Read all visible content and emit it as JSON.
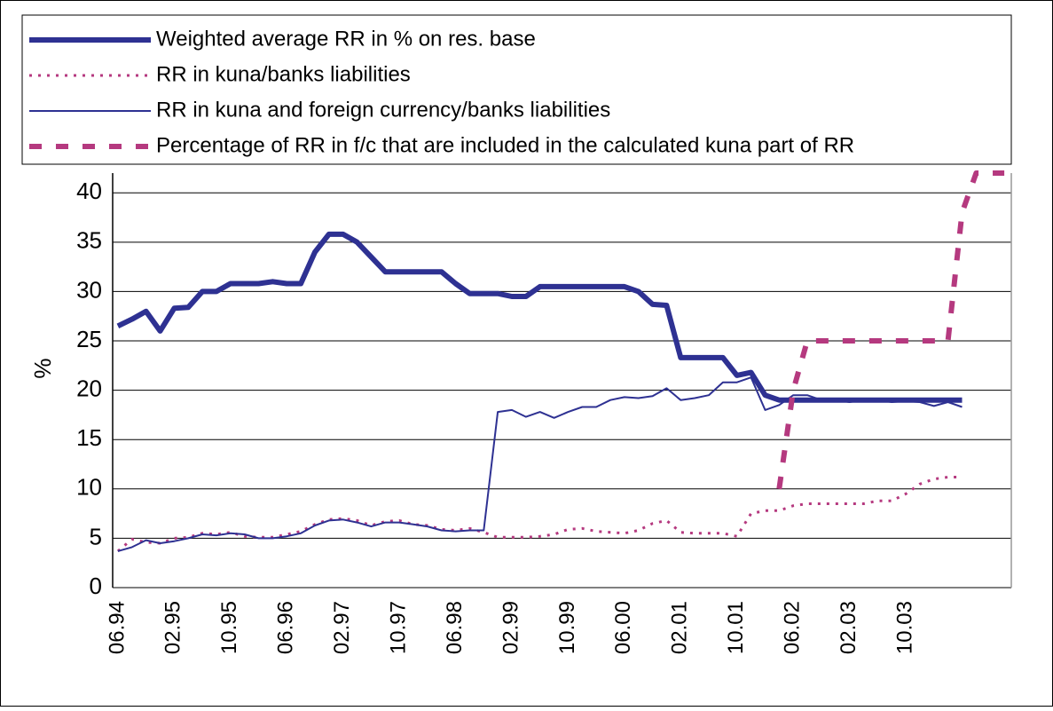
{
  "chart_data": {
    "type": "line",
    "y_label": "%",
    "categories": [
      "06.94",
      null,
      null,
      null,
      "02.95",
      null,
      null,
      null,
      "10.95",
      null,
      null,
      null,
      "06.96",
      null,
      null,
      null,
      "02.97",
      null,
      null,
      null,
      "10.97",
      null,
      null,
      null,
      "06.98",
      null,
      null,
      null,
      "02.99",
      null,
      null,
      null,
      "10.99",
      null,
      null,
      null,
      "06.00",
      null,
      null,
      null,
      "02.01",
      null,
      null,
      null,
      "10.01",
      null,
      null,
      null,
      "06.02",
      null,
      null,
      null,
      "02.03",
      null,
      null,
      null,
      "10.03",
      null,
      null,
      null,
      null,
      null,
      null,
      null
    ],
    "series": [
      {
        "name": "Weighted average RR in % on res. base",
        "color": "#2e3192",
        "style": "thick",
        "values": [
          26.5,
          27.2,
          28,
          26,
          28.3,
          28.4,
          30,
          30,
          30.8,
          30.8,
          30.8,
          31,
          30.8,
          30.8,
          34,
          35.8,
          35.8,
          35,
          33.5,
          32,
          32,
          32,
          32,
          32,
          30.8,
          29.8,
          29.8,
          29.8,
          29.5,
          29.5,
          30.5,
          30.5,
          30.5,
          30.5,
          30.5,
          30.5,
          30.5,
          30,
          28.7,
          28.6,
          23.3,
          23.3,
          23.3,
          23.3,
          21.5,
          21.8,
          19.5,
          19,
          19,
          19,
          19,
          19,
          19,
          19,
          19,
          19,
          19,
          19,
          19,
          19,
          19,
          null,
          null,
          null
        ]
      },
      {
        "name": "RR in kuna/banks liabilities",
        "color": "#b5397f",
        "style": "dotted",
        "values": [
          3.7,
          4.9,
          4.6,
          4.5,
          5.0,
          5.1,
          5.5,
          5.4,
          5.6,
          5.2,
          5.1,
          5.1,
          5.4,
          5.7,
          6.4,
          6.9,
          7.0,
          6.8,
          6.3,
          6.7,
          6.8,
          6.4,
          6.3,
          5.9,
          5.8,
          6.0,
          5.6,
          5.1,
          5.1,
          5.1,
          5.2,
          5.4,
          5.9,
          6.0,
          5.7,
          5.6,
          5.5,
          5.8,
          6.5,
          6.8,
          5.6,
          5.5,
          5.5,
          5.5,
          5.2,
          7.5,
          7.8,
          7.8,
          8.3,
          8.5,
          8.5,
          8.5,
          8.5,
          8.5,
          8.8,
          8.8,
          9.5,
          10.5,
          11,
          11.2,
          11.2,
          null,
          null,
          null
        ]
      },
      {
        "name": "RR in kuna and foreign currency/banks liabilities",
        "color": "#2e3192",
        "style": "solid",
        "values": [
          3.7,
          4.1,
          4.8,
          4.5,
          4.7,
          5.0,
          5.4,
          5.3,
          5.5,
          5.4,
          5.0,
          5.0,
          5.2,
          5.5,
          6.3,
          6.8,
          6.9,
          6.6,
          6.2,
          6.6,
          6.6,
          6.4,
          6.2,
          5.8,
          5.7,
          5.8,
          5.8,
          17.8,
          18,
          17.3,
          17.8,
          17.2,
          17.8,
          18.3,
          18.3,
          19,
          19.3,
          19.2,
          19.4,
          20.2,
          19.0,
          19.2,
          19.5,
          20.8,
          20.8,
          21.3,
          18,
          18.5,
          19.5,
          19.5,
          19,
          19,
          18.8,
          19,
          19,
          18.8,
          18.9,
          18.8,
          18.4,
          18.8,
          18.3,
          null,
          null,
          null
        ]
      },
      {
        "name": "Percentage of RR in f/c that are included in the calculated kuna part of RR",
        "color": "#b5397f",
        "style": "dashed",
        "values": [
          null,
          null,
          null,
          null,
          null,
          null,
          null,
          null,
          null,
          null,
          null,
          null,
          null,
          null,
          null,
          null,
          null,
          null,
          null,
          null,
          null,
          null,
          null,
          null,
          null,
          null,
          null,
          null,
          null,
          null,
          null,
          null,
          null,
          null,
          null,
          null,
          null,
          null,
          null,
          null,
          null,
          null,
          null,
          null,
          null,
          null,
          null,
          10,
          20,
          25,
          25,
          25,
          25,
          25,
          25,
          25,
          25,
          25,
          25,
          25,
          38,
          42,
          42,
          42
        ]
      }
    ],
    "ylim": [
      0,
      42
    ],
    "yticks": [
      0,
      5,
      10,
      15,
      20,
      25,
      30,
      35,
      40
    ],
    "grid": true,
    "legend": "top"
  }
}
